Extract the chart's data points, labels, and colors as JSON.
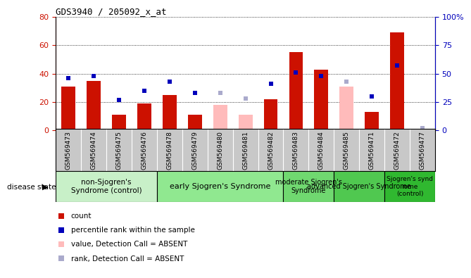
{
  "title": "GDS3940 / 205092_x_at",
  "samples": [
    "GSM569473",
    "GSM569474",
    "GSM569475",
    "GSM569476",
    "GSM569478",
    "GSM569479",
    "GSM569480",
    "GSM569481",
    "GSM569482",
    "GSM569483",
    "GSM569484",
    "GSM569485",
    "GSM569471",
    "GSM569472",
    "GSM569477"
  ],
  "count_values": [
    31,
    35,
    11,
    19,
    25,
    11,
    null,
    null,
    22,
    55,
    43,
    null,
    13,
    69,
    null
  ],
  "rank_values": [
    46,
    48,
    27,
    35,
    43,
    33,
    null,
    null,
    41,
    51,
    48,
    null,
    30,
    57,
    null
  ],
  "count_absent": [
    null,
    null,
    null,
    null,
    null,
    null,
    18,
    11,
    null,
    null,
    null,
    31,
    null,
    null,
    null
  ],
  "rank_absent": [
    null,
    null,
    null,
    null,
    null,
    null,
    33,
    28,
    null,
    null,
    null,
    43,
    null,
    null,
    2
  ],
  "disease_groups": [
    {
      "label": "non-Sjogren's\nSyndrome (control)",
      "start": 0,
      "end": 4,
      "color": "#c8f0c8"
    },
    {
      "label": "early Sjogren's Syndrome",
      "start": 4,
      "end": 9,
      "color": "#90e890"
    },
    {
      "label": "moderate Sjogren's\nSyndrome",
      "start": 9,
      "end": 11,
      "color": "#70d870"
    },
    {
      "label": "advanced Sjogren's Syndrome",
      "start": 11,
      "end": 13,
      "color": "#50c850"
    },
    {
      "label": "Sjogren's synd\nrome\n(control)",
      "start": 13,
      "end": 15,
      "color": "#30b830"
    }
  ],
  "ylim_left": [
    0,
    80
  ],
  "ylim_right": [
    0,
    100
  ],
  "yticks_left": [
    0,
    20,
    40,
    60,
    80
  ],
  "yticks_right": [
    0,
    25,
    50,
    75,
    100
  ],
  "count_color": "#cc1100",
  "rank_color": "#0000bb",
  "count_absent_color": "#ffbbbb",
  "rank_absent_color": "#aaaacc",
  "grid_color": "#000000",
  "tick_bg_color": "#c8c8c8",
  "left_axis_color": "#cc1100",
  "right_axis_color": "#0000bb"
}
